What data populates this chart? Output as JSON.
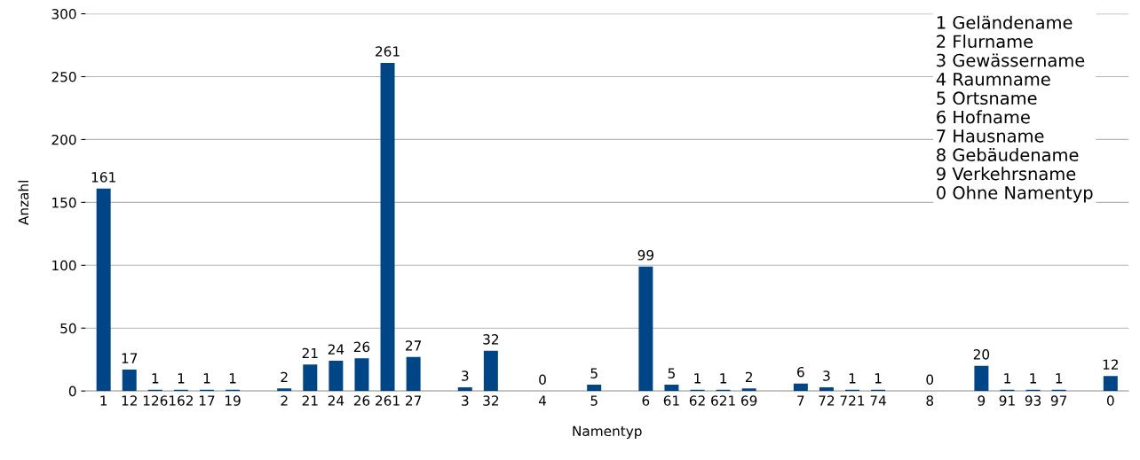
{
  "chart_data": {
    "type": "bar",
    "xlabel": "Namentyp",
    "ylabel": "Anzahl",
    "categories": [
      "1",
      "12",
      "126",
      "162",
      "17",
      "19",
      null,
      "2",
      "21",
      "24",
      "26",
      "261",
      "27",
      null,
      "3",
      "32",
      null,
      "4",
      null,
      "5",
      null,
      "6",
      "61",
      "62",
      "621",
      "69",
      null,
      "7",
      "72",
      "721",
      "74",
      null,
      "8",
      null,
      "9",
      "91",
      "93",
      "97",
      null,
      "0"
    ],
    "series": [
      {
        "color": "#004586",
        "values": [
          161,
          17,
          1,
          1,
          1,
          1,
          null,
          2,
          21,
          24,
          26,
          261,
          27,
          null,
          3,
          32,
          null,
          0,
          null,
          5,
          null,
          99,
          5,
          1,
          1,
          2,
          null,
          6,
          3,
          1,
          1,
          null,
          0,
          null,
          20,
          1,
          1,
          1,
          null,
          12
        ]
      }
    ],
    "ylim": [
      0,
      300
    ],
    "yticks": [
      0,
      50,
      100,
      150,
      200,
      250,
      300
    ],
    "grid": "y",
    "data_labels": true,
    "annotations": [
      "1 Geländename",
      "2 Flurname",
      "3 Gewässername",
      "4 Raumname",
      "5 Ortsname",
      "6 Hofname",
      "7 Hausname",
      "8 Gebäudename",
      "9 Verkehrsname",
      "0 Ohne Namentyp"
    ]
  }
}
